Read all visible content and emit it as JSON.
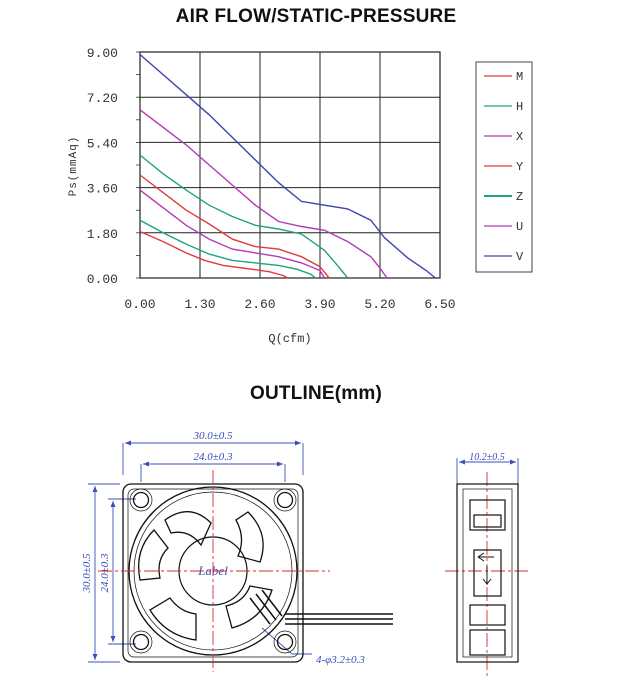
{
  "chart_data": {
    "type": "line",
    "title": "AIR FLOW/STATIC-PRESSURE",
    "xlabel": "Q(cfm)",
    "ylabel": "Ps(mmAq)",
    "xlim": [
      0,
      6.5
    ],
    "ylim": [
      0,
      9.0
    ],
    "x_ticks": [
      "0.00",
      "1.30",
      "2.60",
      "3.90",
      "5.20",
      "6.50"
    ],
    "y_ticks": [
      "0.00",
      "1.80",
      "3.60",
      "5.40",
      "7.20",
      "9.00"
    ],
    "grid": true,
    "legend_position": "right",
    "series": [
      {
        "name": "M",
        "color": "#e23b3b",
        "points": [
          [
            0,
            1.85
          ],
          [
            0.5,
            1.45
          ],
          [
            1.0,
            1.0
          ],
          [
            1.4,
            0.7
          ],
          [
            1.8,
            0.5
          ],
          [
            2.3,
            0.38
          ],
          [
            2.8,
            0.25
          ],
          [
            3.1,
            0.1
          ],
          [
            3.2,
            0
          ]
        ]
      },
      {
        "name": "H",
        "color": "#1fa37a",
        "points": [
          [
            0,
            2.3
          ],
          [
            0.5,
            1.8
          ],
          [
            1.0,
            1.35
          ],
          [
            1.5,
            0.95
          ],
          [
            2.0,
            0.7
          ],
          [
            2.5,
            0.6
          ],
          [
            3.0,
            0.5
          ],
          [
            3.4,
            0.35
          ],
          [
            3.7,
            0.15
          ],
          [
            3.8,
            0
          ]
        ]
      },
      {
        "name": "X",
        "color": "#b03ab8",
        "points": [
          [
            0,
            3.5
          ],
          [
            0.5,
            2.8
          ],
          [
            1.0,
            2.1
          ],
          [
            1.5,
            1.55
          ],
          [
            2.0,
            1.15
          ],
          [
            2.5,
            1.0
          ],
          [
            3.0,
            0.85
          ],
          [
            3.5,
            0.6
          ],
          [
            3.9,
            0.3
          ],
          [
            4.0,
            0
          ]
        ]
      },
      {
        "name": "Y",
        "color": "#e23b3b",
        "points": [
          [
            0,
            4.1
          ],
          [
            0.5,
            3.4
          ],
          [
            1.0,
            2.7
          ],
          [
            1.5,
            2.15
          ],
          [
            2.0,
            1.55
          ],
          [
            2.5,
            1.25
          ],
          [
            3.0,
            1.15
          ],
          [
            3.5,
            0.85
          ],
          [
            3.9,
            0.45
          ],
          [
            4.1,
            0
          ]
        ]
      },
      {
        "name": "Z",
        "color": "#1fa37a",
        "points": [
          [
            0,
            4.9
          ],
          [
            0.5,
            4.15
          ],
          [
            1.0,
            3.5
          ],
          [
            1.5,
            2.9
          ],
          [
            2.0,
            2.45
          ],
          [
            2.5,
            2.1
          ],
          [
            3.0,
            1.95
          ],
          [
            3.5,
            1.75
          ],
          [
            4.0,
            1.1
          ],
          [
            4.3,
            0.45
          ],
          [
            4.5,
            0
          ]
        ]
      },
      {
        "name": "U",
        "color": "#b03ab8",
        "points": [
          [
            0,
            6.7
          ],
          [
            0.5,
            6.0
          ],
          [
            1.0,
            5.3
          ],
          [
            1.5,
            4.5
          ],
          [
            2.0,
            3.7
          ],
          [
            2.5,
            2.9
          ],
          [
            3.0,
            2.25
          ],
          [
            3.5,
            2.05
          ],
          [
            4.0,
            1.9
          ],
          [
            4.5,
            1.45
          ],
          [
            5.0,
            0.85
          ],
          [
            5.2,
            0.4
          ],
          [
            5.35,
            0
          ]
        ]
      },
      {
        "name": "V",
        "color": "#3b44b0",
        "points": [
          [
            0,
            8.9
          ],
          [
            0.5,
            8.1
          ],
          [
            1.0,
            7.3
          ],
          [
            1.5,
            6.5
          ],
          [
            2.0,
            5.6
          ],
          [
            2.5,
            4.7
          ],
          [
            3.0,
            3.8
          ],
          [
            3.5,
            3.05
          ],
          [
            4.0,
            2.9
          ],
          [
            4.5,
            2.75
          ],
          [
            5.0,
            2.3
          ],
          [
            5.3,
            1.6
          ],
          [
            5.8,
            0.8
          ],
          [
            6.2,
            0.3
          ],
          [
            6.4,
            0
          ]
        ]
      }
    ]
  },
  "outline": {
    "title": "OUTLINE(mm)",
    "dim_width_outer": "30.0±0.5",
    "dim_width_inner": "24.0±0.3",
    "dim_height_outer": "30.0±0.5",
    "dim_height_inner": "24.0±0.3",
    "dim_hole": "4-φ3.2±0.3",
    "dim_thickness": "10.2±0.5",
    "hub_label": "Label"
  }
}
